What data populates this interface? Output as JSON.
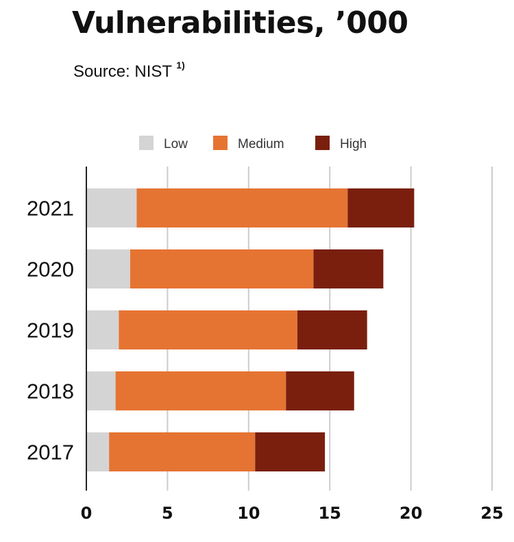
{
  "header": {
    "title": "Vulnerabilities, ’000",
    "source_label": "Source: NIST",
    "source_note": "1)"
  },
  "chart_data": {
    "type": "bar",
    "orientation": "horizontal",
    "stacked": true,
    "categories": [
      "2021",
      "2020",
      "2019",
      "2018",
      "2017"
    ],
    "series": [
      {
        "name": "Low",
        "color": "#d4d4d4",
        "values": [
          3.1,
          2.7,
          2.0,
          1.8,
          1.4
        ]
      },
      {
        "name": "Medium",
        "color": "#e57433",
        "values": [
          13.0,
          11.3,
          11.0,
          10.5,
          9.0
        ]
      },
      {
        "name": "High",
        "color": "#7a1f0e",
        "values": [
          4.1,
          4.3,
          4.3,
          4.2,
          4.3
        ]
      }
    ],
    "xlim": [
      0,
      25
    ],
    "xticks": [
      "0",
      "5",
      "10",
      "15",
      "20",
      "25"
    ],
    "grid": true,
    "legend": "top"
  }
}
